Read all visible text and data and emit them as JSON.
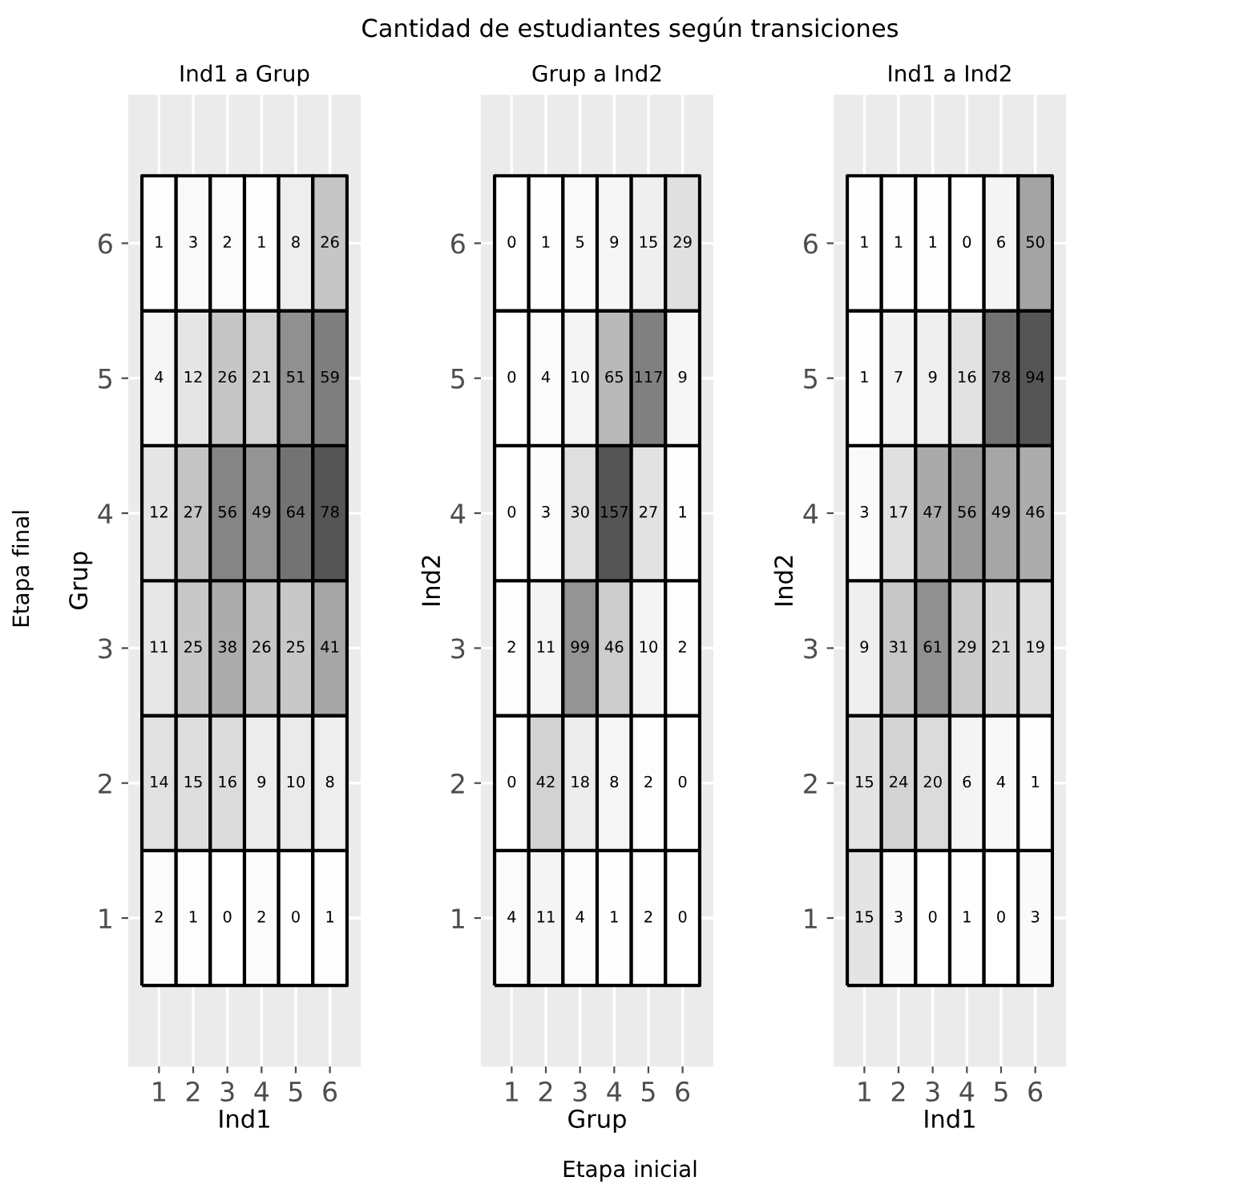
{
  "chart_data": [
    {
      "type": "heatmap",
      "title": "Ind1 a Grup",
      "xlabel": "Ind1",
      "ylabel": "Grup",
      "grid": true,
      "data_labels": true,
      "annotations": [
        "Cantidad de estudiantes según transiciones",
        "Etapa inicial",
        "Etapa final"
      ],
      "categories": [
        "1",
        "2",
        "3",
        "4",
        "5",
        "6"
      ],
      "y_categories": [
        "6",
        "5",
        "4",
        "3",
        "2",
        "1"
      ],
      "cells": [
        [
          1,
          3,
          2,
          1,
          8,
          26
        ],
        [
          4,
          12,
          26,
          21,
          51,
          59
        ],
        [
          12,
          27,
          56,
          49,
          64,
          78
        ],
        [
          11,
          25,
          38,
          26,
          25,
          41
        ],
        [
          14,
          15,
          16,
          9,
          10,
          8
        ],
        [
          2,
          1,
          0,
          2,
          0,
          1
        ]
      ]
    },
    {
      "type": "heatmap",
      "title": "Grup a Ind2",
      "xlabel": "Grup",
      "ylabel": "Ind2",
      "grid": true,
      "data_labels": true,
      "categories": [
        "1",
        "2",
        "3",
        "4",
        "5",
        "6"
      ],
      "y_categories": [
        "6",
        "5",
        "4",
        "3",
        "2",
        "1"
      ],
      "cells": [
        [
          0,
          1,
          5,
          9,
          15,
          29
        ],
        [
          0,
          4,
          10,
          65,
          117,
          9
        ],
        [
          0,
          3,
          30,
          157,
          27,
          1
        ],
        [
          2,
          11,
          99,
          46,
          10,
          2
        ],
        [
          0,
          42,
          18,
          8,
          2,
          0
        ],
        [
          4,
          11,
          4,
          1,
          2,
          0
        ]
      ]
    },
    {
      "type": "heatmap",
      "title": "Ind1 a Ind2",
      "xlabel": "Ind1",
      "ylabel": "Ind2",
      "grid": true,
      "data_labels": true,
      "categories": [
        "1",
        "2",
        "3",
        "4",
        "5",
        "6"
      ],
      "y_categories": [
        "6",
        "5",
        "4",
        "3",
        "2",
        "1"
      ],
      "cells": [
        [
          1,
          1,
          1,
          0,
          6,
          50
        ],
        [
          1,
          7,
          9,
          16,
          78,
          94
        ],
        [
          3,
          17,
          47,
          56,
          49,
          46
        ],
        [
          9,
          31,
          61,
          29,
          21,
          19
        ],
        [
          15,
          24,
          20,
          6,
          4,
          1
        ],
        [
          15,
          3,
          0,
          1,
          0,
          3
        ]
      ]
    }
  ]
}
